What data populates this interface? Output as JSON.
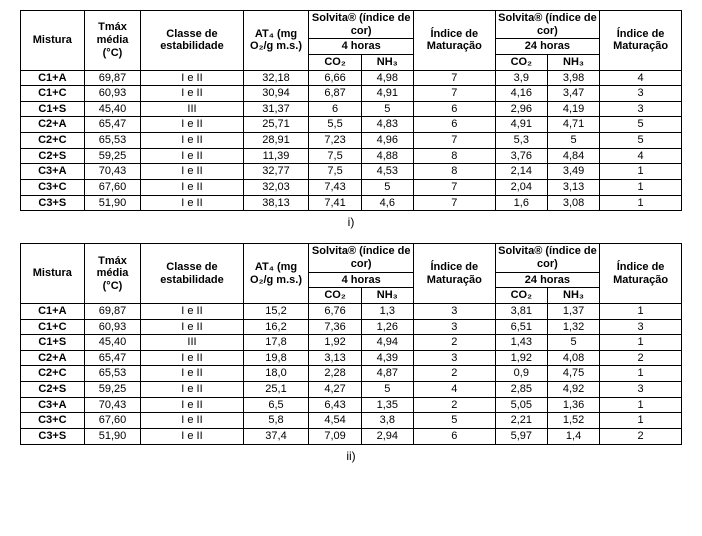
{
  "labels": {
    "mistura": "Mistura",
    "tmax": "Tmáx média (°C)",
    "classe": "Classe de estabilidade",
    "at4": "AT₄ (mg O₂/g m.s.)",
    "solvita_group": "Solvita® (índice de cor)",
    "solvita4_sub": "4 horas",
    "solvita24_sub": "24 horas",
    "indice_mat": "Índice de Maturação",
    "co2": "CO₂",
    "nh3": "NH₃"
  },
  "captions": {
    "i": "i)",
    "ii": "ii)"
  },
  "table1": {
    "rows": [
      {
        "mistura": "C1+A",
        "tmax": "69,87",
        "classe": "I e II",
        "at4": "32,18",
        "s4co2": "6,66",
        "s4nh3": "4,98",
        "mat1": "7",
        "s24co2": "3,9",
        "s24nh3": "3,98",
        "mat2": "4"
      },
      {
        "mistura": "C1+C",
        "tmax": "60,93",
        "classe": "I e II",
        "at4": "30,94",
        "s4co2": "6,87",
        "s4nh3": "4,91",
        "mat1": "7",
        "s24co2": "4,16",
        "s24nh3": "3,47",
        "mat2": "3"
      },
      {
        "mistura": "C1+S",
        "tmax": "45,40",
        "classe": "III",
        "at4": "31,37",
        "s4co2": "6",
        "s4nh3": "5",
        "mat1": "6",
        "s24co2": "2,96",
        "s24nh3": "4,19",
        "mat2": "3"
      },
      {
        "mistura": "C2+A",
        "tmax": "65,47",
        "classe": "I e II",
        "at4": "25,71",
        "s4co2": "5,5",
        "s4nh3": "4,83",
        "mat1": "6",
        "s24co2": "4,91",
        "s24nh3": "4,71",
        "mat2": "5"
      },
      {
        "mistura": "C2+C",
        "tmax": "65,53",
        "classe": "I e II",
        "at4": "28,91",
        "s4co2": "7,23",
        "s4nh3": "4,96",
        "mat1": "7",
        "s24co2": "5,3",
        "s24nh3": "5",
        "mat2": "5"
      },
      {
        "mistura": "C2+S",
        "tmax": "59,25",
        "classe": "I e II",
        "at4": "11,39",
        "s4co2": "7,5",
        "s4nh3": "4,88",
        "mat1": "8",
        "s24co2": "3,76",
        "s24nh3": "4,84",
        "mat2": "4"
      },
      {
        "mistura": "C3+A",
        "tmax": "70,43",
        "classe": "I e II",
        "at4": "32,77",
        "s4co2": "7,5",
        "s4nh3": "4,53",
        "mat1": "8",
        "s24co2": "2,14",
        "s24nh3": "3,49",
        "mat2": "1"
      },
      {
        "mistura": "C3+C",
        "tmax": "67,60",
        "classe": "I e II",
        "at4": "32,03",
        "s4co2": "7,43",
        "s4nh3": "5",
        "mat1": "7",
        "s24co2": "2,04",
        "s24nh3": "3,13",
        "mat2": "1"
      },
      {
        "mistura": "C3+S",
        "tmax": "51,90",
        "classe": "I e II",
        "at4": "38,13",
        "s4co2": "7,41",
        "s4nh3": "4,6",
        "mat1": "7",
        "s24co2": "1,6",
        "s24nh3": "3,08",
        "mat2": "1"
      }
    ]
  },
  "table2": {
    "rows": [
      {
        "mistura": "C1+A",
        "tmax": "69,87",
        "classe": "I e II",
        "at4": "15,2",
        "s4co2": "6,76",
        "s4nh3": "1,3",
        "mat1": "3",
        "s24co2": "3,81",
        "s24nh3": "1,37",
        "mat2": "1"
      },
      {
        "mistura": "C1+C",
        "tmax": "60,93",
        "classe": "I e II",
        "at4": "16,2",
        "s4co2": "7,36",
        "s4nh3": "1,26",
        "mat1": "3",
        "s24co2": "6,51",
        "s24nh3": "1,32",
        "mat2": "3"
      },
      {
        "mistura": "C1+S",
        "tmax": "45,40",
        "classe": "III",
        "at4": "17,8",
        "s4co2": "1,92",
        "s4nh3": "4,94",
        "mat1": "2",
        "s24co2": "1,43",
        "s24nh3": "5",
        "mat2": "1"
      },
      {
        "mistura": "C2+A",
        "tmax": "65,47",
        "classe": "I e II",
        "at4": "19,8",
        "s4co2": "3,13",
        "s4nh3": "4,39",
        "mat1": "3",
        "s24co2": "1,92",
        "s24nh3": "4,08",
        "mat2": "2"
      },
      {
        "mistura": "C2+C",
        "tmax": "65,53",
        "classe": "I e II",
        "at4": "18,0",
        "s4co2": "2,28",
        "s4nh3": "4,87",
        "mat1": "2",
        "s24co2": "0,9",
        "s24nh3": "4,75",
        "mat2": "1"
      },
      {
        "mistura": "C2+S",
        "tmax": "59,25",
        "classe": "I e II",
        "at4": "25,1",
        "s4co2": "4,27",
        "s4nh3": "5",
        "mat1": "4",
        "s24co2": "2,85",
        "s24nh3": "4,92",
        "mat2": "3"
      },
      {
        "mistura": "C3+A",
        "tmax": "70,43",
        "classe": "I e II",
        "at4": "6,5",
        "s4co2": "6,43",
        "s4nh3": "1,35",
        "mat1": "2",
        "s24co2": "5,05",
        "s24nh3": "1,36",
        "mat2": "1"
      },
      {
        "mistura": "C3+C",
        "tmax": "67,60",
        "classe": "I e II",
        "at4": "5,8",
        "s4co2": "4,54",
        "s4nh3": "3,8",
        "mat1": "5",
        "s24co2": "2,21",
        "s24nh3": "1,52",
        "mat2": "1"
      },
      {
        "mistura": "C3+S",
        "tmax": "51,90",
        "classe": "I e II",
        "at4": "37,4",
        "s4co2": "7,09",
        "s4nh3": "2,94",
        "mat1": "6",
        "s24co2": "5,97",
        "s24nh3": "1,4",
        "mat2": "2"
      }
    ]
  }
}
